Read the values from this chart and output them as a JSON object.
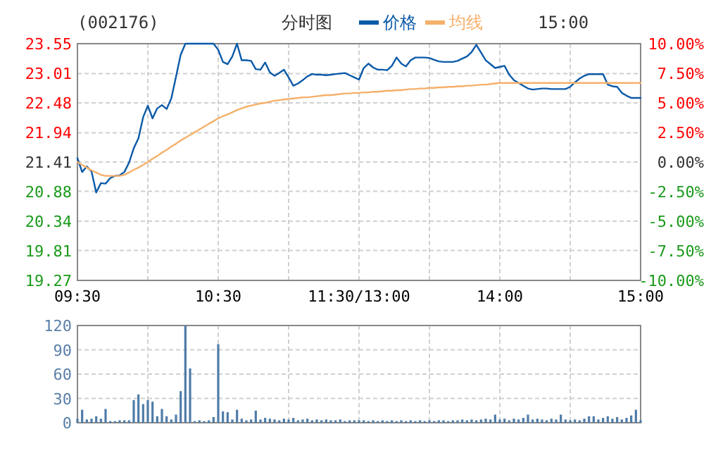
{
  "chart_data": [
    {
      "type": "line",
      "title": "(002176)",
      "subtitle": "分时图",
      "annotations": [
        "15:00"
      ],
      "legend": "top",
      "grid": true,
      "line_style": "solid",
      "categories": [
        "09:30",
        null,
        null,
        null,
        null,
        null,
        null,
        null,
        null,
        null,
        null,
        null,
        null,
        null,
        null,
        null,
        null,
        null,
        null,
        null,
        null,
        null,
        null,
        null,
        null,
        null,
        null,
        null,
        null,
        null,
        "10:30",
        null,
        null,
        null,
        null,
        null,
        null,
        null,
        null,
        null,
        null,
        null,
        null,
        null,
        null,
        null,
        null,
        null,
        null,
        null,
        null,
        null,
        null,
        null,
        null,
        null,
        null,
        null,
        null,
        null,
        "11:30/13:00",
        null,
        null,
        null,
        null,
        null,
        null,
        null,
        null,
        null,
        null,
        null,
        null,
        null,
        null,
        null,
        null,
        null,
        null,
        null,
        null,
        null,
        null,
        null,
        null,
        null,
        null,
        null,
        null,
        null,
        "14:00",
        null,
        null,
        null,
        null,
        null,
        null,
        null,
        null,
        null,
        null,
        null,
        null,
        null,
        null,
        null,
        null,
        null,
        null,
        null,
        null,
        null,
        null,
        null,
        null,
        null,
        null,
        null,
        null,
        null,
        "15:00"
      ],
      "ylim": [
        19.27,
        23.55
      ],
      "yticks": [
        19.27,
        19.81,
        20.34,
        20.88,
        21.41,
        21.94,
        22.48,
        23.01,
        23.55
      ],
      "y2lim": [
        -10,
        10
      ],
      "y2ticks": [
        {
          "value": -10,
          "label": "-10.00%"
        },
        {
          "value": -7.5,
          "label": "-7.50%"
        },
        {
          "value": -5,
          "label": "-5.00%"
        },
        {
          "value": -2.5,
          "label": "-2.50%"
        },
        {
          "value": 0,
          "label": "0.00%"
        },
        {
          "value": 2.5,
          "label": "2.50%"
        },
        {
          "value": 5,
          "label": "5.00%"
        },
        {
          "value": 7.5,
          "label": "7.50%"
        },
        {
          "value": 10,
          "label": "10.00%"
        }
      ],
      "series": [
        {
          "name": "价格",
          "color": "#0b5aa8",
          "values": [
            21.48,
            21.23,
            21.33,
            21.24,
            20.86,
            21.03,
            21.02,
            21.12,
            21.16,
            21.17,
            21.23,
            21.4,
            21.66,
            21.84,
            22.22,
            22.43,
            22.2,
            22.38,
            22.44,
            22.37,
            22.56,
            22.95,
            23.35,
            23.55,
            23.55,
            23.55,
            23.55,
            23.55,
            23.55,
            23.55,
            23.44,
            23.22,
            23.18,
            23.32,
            23.55,
            23.25,
            23.25,
            23.24,
            23.09,
            23.08,
            23.21,
            23.03,
            22.97,
            23.02,
            23.08,
            22.94,
            22.79,
            22.83,
            22.89,
            22.96,
            23.0,
            22.99,
            22.99,
            22.98,
            22.99,
            23.0,
            23.01,
            23.02,
            22.98,
            22.94,
            22.9,
            23.11,
            23.19,
            23.12,
            23.08,
            23.08,
            23.07,
            23.15,
            23.3,
            23.19,
            23.14,
            23.25,
            23.3,
            23.3,
            23.3,
            23.29,
            23.26,
            23.23,
            23.22,
            23.22,
            23.22,
            23.24,
            23.28,
            23.32,
            23.4,
            23.53,
            23.39,
            23.25,
            23.18,
            23.11,
            23.13,
            23.15,
            22.99,
            22.89,
            22.84,
            22.79,
            22.74,
            22.72,
            22.73,
            22.74,
            22.74,
            22.73,
            22.73,
            22.73,
            22.73,
            22.77,
            22.85,
            22.92,
            22.97,
            23.0,
            23.0,
            23.0,
            23.0,
            22.81,
            22.78,
            22.77,
            22.66,
            22.61,
            22.57,
            22.57,
            22.57
          ]
        },
        {
          "name": "均线",
          "color": "#f5b06a",
          "values": [
            21.41,
            21.36,
            21.31,
            21.26,
            21.22,
            21.18,
            21.16,
            21.16,
            21.16,
            21.16,
            21.18,
            21.22,
            21.27,
            21.31,
            21.36,
            21.41,
            21.47,
            21.52,
            21.58,
            21.63,
            21.69,
            21.74,
            21.8,
            21.85,
            21.9,
            21.95,
            22.0,
            22.05,
            22.1,
            22.15,
            22.2,
            22.24,
            22.27,
            22.31,
            22.35,
            22.38,
            22.41,
            22.43,
            22.45,
            22.47,
            22.48,
            22.5,
            22.52,
            22.53,
            22.54,
            22.55,
            22.56,
            22.57,
            22.58,
            22.58,
            22.59,
            22.6,
            22.61,
            22.62,
            22.62,
            22.63,
            22.64,
            22.65,
            22.65,
            22.66,
            22.66,
            22.67,
            22.67,
            22.68,
            22.68,
            22.69,
            22.7,
            22.7,
            22.71,
            22.71,
            22.72,
            22.73,
            22.73,
            22.74,
            22.74,
            22.75,
            22.75,
            22.76,
            22.76,
            22.77,
            22.77,
            22.78,
            22.78,
            22.79,
            22.79,
            22.8,
            22.81,
            22.81,
            22.82,
            22.83,
            22.84,
            22.84,
            22.84,
            22.84,
            22.84,
            22.84,
            22.84,
            22.84,
            22.84,
            22.84,
            22.84,
            22.84,
            22.84,
            22.84,
            22.84,
            22.84,
            22.84,
            22.84,
            22.84,
            22.84,
            22.84,
            22.84,
            22.84,
            22.84,
            22.84,
            22.84,
            22.84,
            22.84,
            22.84,
            22.84,
            22.84
          ]
        }
      ]
    },
    {
      "type": "bar",
      "grid": true,
      "tick_labels": "y",
      "categories": [
        null,
        null,
        null,
        null,
        null,
        null,
        null,
        null,
        null,
        null,
        null,
        null,
        null,
        null,
        null,
        null,
        null,
        null,
        null,
        null,
        null,
        null,
        null,
        null,
        null,
        null,
        null,
        null,
        null,
        null,
        null,
        null,
        null,
        null,
        null,
        null,
        null,
        null,
        null,
        null,
        null,
        null,
        null,
        null,
        null,
        null,
        null,
        null,
        null,
        null,
        null,
        null,
        null,
        null,
        null,
        null,
        null,
        null,
        null,
        null,
        null,
        null,
        null,
        null,
        null,
        null,
        null,
        null,
        null,
        null,
        null,
        null,
        null,
        null,
        null,
        null,
        null,
        null,
        null,
        null,
        null,
        null,
        null,
        null,
        null,
        null,
        null,
        null,
        null,
        null,
        null,
        null,
        null,
        null,
        null,
        null,
        null,
        null,
        null,
        null,
        null,
        null,
        null,
        null,
        null,
        null,
        null,
        null,
        null,
        null,
        null,
        null,
        null,
        null,
        null,
        null,
        null,
        null,
        null,
        null,
        null
      ],
      "ylim": [
        0,
        120
      ],
      "yticks": [
        0,
        30,
        60,
        90,
        120
      ],
      "color": "#4f7ca8",
      "values": [
        5,
        16,
        4,
        5,
        8,
        5,
        17,
        2,
        2,
        3,
        3,
        3,
        28,
        35,
        23,
        28,
        26,
        8,
        17,
        8,
        4,
        10,
        39,
        120,
        67,
        2,
        3,
        2,
        3,
        7,
        97,
        14,
        13,
        4,
        16,
        5,
        3,
        4,
        15,
        4,
        6,
        5,
        4,
        3,
        5,
        4,
        6,
        3,
        4,
        5,
        3,
        4,
        3,
        4,
        3,
        3,
        4,
        2,
        3,
        3,
        3,
        3,
        2,
        3,
        2,
        3,
        2,
        3,
        2,
        3,
        2,
        3,
        2,
        3,
        2,
        3,
        2,
        3,
        3,
        2,
        3,
        3,
        4,
        3,
        4,
        3,
        4,
        5,
        4,
        10,
        4,
        5,
        3,
        5,
        4,
        6,
        10,
        4,
        5,
        4,
        3,
        5,
        4,
        10,
        4,
        3,
        4,
        3,
        5,
        8,
        8,
        4,
        6,
        8,
        5,
        7,
        4,
        6,
        9,
        16,
        3
      ]
    }
  ]
}
